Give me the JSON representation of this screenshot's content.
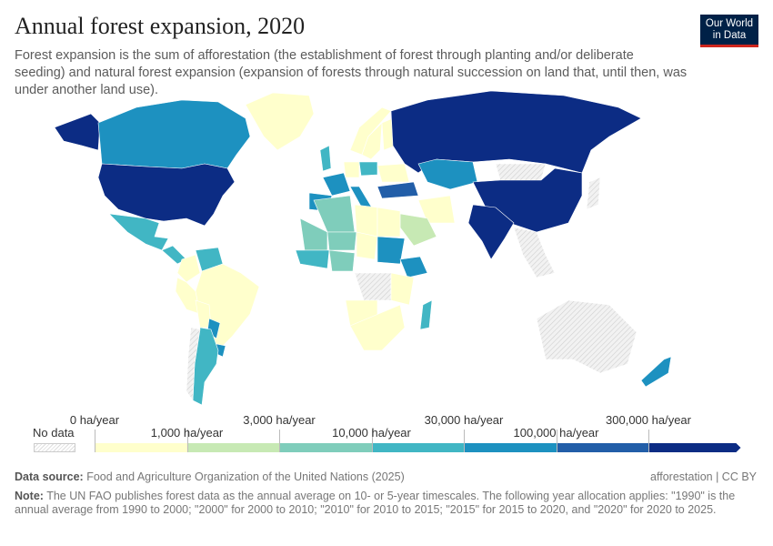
{
  "header": {
    "title": "Annual forest expansion, 2020",
    "subtitle": "Forest expansion is the sum of afforestation (the establishment of forest through planting and/or deliberate seeding) and natural forest expansion (expansion of forests through natural succession on land that, until then, was under another land use).",
    "logo": "Our World in Data"
  },
  "legend": {
    "no_data": "No data",
    "ticks": [
      "0 ha/year",
      "1,000 ha/year",
      "3,000 ha/year",
      "10,000 ha/year",
      "30,000 ha/year",
      "100,000 ha/year",
      "300,000 ha/year"
    ],
    "colors": [
      "#ffffcc",
      "#c7e9b4",
      "#7fcdbb",
      "#41b6c4",
      "#1d91c0",
      "#225ea8",
      "#0c2c84"
    ],
    "no_data_color": "#e6e6e6"
  },
  "map_data": {
    "bins_by_region": {
      "Canada": 4,
      "United States": 6,
      "Alaska": 6,
      "Greenland": 0,
      "Mexico": 3,
      "Central America": 3,
      "Colombia": 0,
      "Venezuela": 3,
      "Brazil": 0,
      "Peru": 0,
      "Bolivia": 0,
      "Argentina": 3,
      "Paraguay": 4,
      "Uruguay": 4,
      "Chile": -1,
      "Norway": 0,
      "Sweden": 0,
      "Finland": 0,
      "United Kingdom": 3,
      "France": 4,
      "Spain": 4,
      "Italy": 4,
      "Germany": 0,
      "Poland": 3,
      "Ukraine": 0,
      "Turkey": 5,
      "Russia": 6,
      "Kazakhstan": 4,
      "Mongolia": -1,
      "China": 6,
      "India": 6,
      "Iran": 0,
      "Saudi Arabia": 1,
      "Southeast Asia": -1,
      "Japan": -1,
      "Algeria": 2,
      "Libya": 0,
      "Egypt": 0,
      "Mali": 2,
      "Niger": 2,
      "Chad": 0,
      "Sudan": 4,
      "Ethiopia": 4,
      "West Africa": 3,
      "Nigeria": 2,
      "DR Congo": -1,
      "Angola": 0,
      "Tanzania": 0,
      "Southern Africa": 0,
      "Madagascar": 3,
      "Australia": -1,
      "New Zealand": 4
    }
  },
  "footer": {
    "source_label": "Data source:",
    "source": "Food and Agriculture Organization of the United Nations (2025)",
    "slug": "afforestation | CC BY",
    "note_label": "Note:",
    "note": "The UN FAO publishes forest data as the annual average on 10- or 5-year timescales. The following year allocation applies: \"1990\" is the annual average from 1990 to 2000; \"2000\" for 2000 to 2010; \"2010\" for 2010 to 2015; \"2015\" for 2015 to 2020, and \"2020\" for 2020 to 2025."
  }
}
